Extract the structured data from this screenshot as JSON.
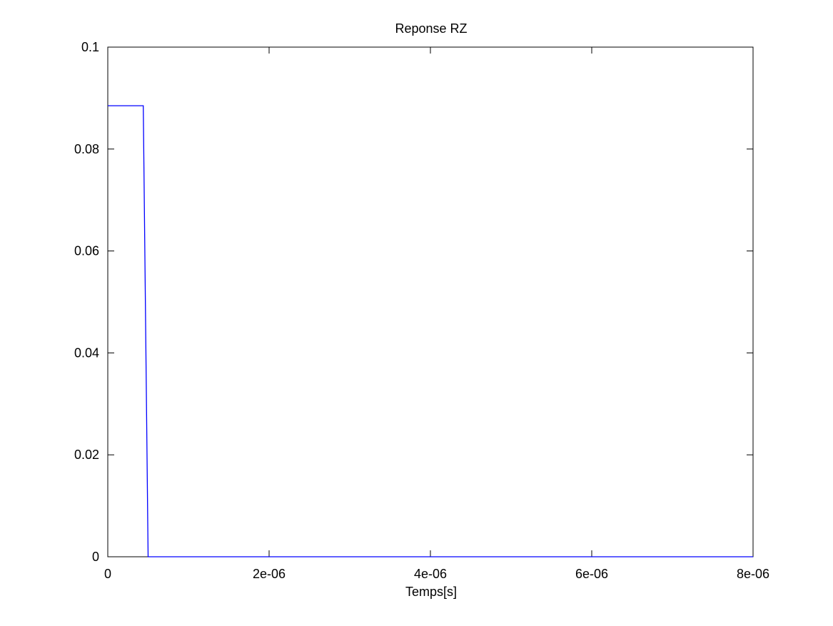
{
  "chart_data": {
    "type": "line",
    "title": "Reponse RZ",
    "xlabel": "Temps[s]",
    "ylabel": "",
    "xlim": [
      0,
      8e-06
    ],
    "ylim": [
      0,
      0.1
    ],
    "x_ticks": [
      0,
      2e-06,
      4e-06,
      6e-06,
      8e-06
    ],
    "x_tick_labels": [
      "0",
      "2e-06",
      "4e-06",
      "6e-06",
      "8e-06"
    ],
    "y_ticks": [
      0,
      0.02,
      0.04,
      0.06,
      0.08,
      0.1
    ],
    "y_tick_labels": [
      "0",
      "0.02",
      "0.04",
      "0.06",
      "0.08",
      "0.1"
    ],
    "grid": false,
    "series": [
      {
        "color": "#0000ff",
        "x": [
          0,
          4.4e-07,
          5e-07,
          8e-06
        ],
        "y": [
          0.0885,
          0.0885,
          0,
          0
        ]
      }
    ]
  }
}
